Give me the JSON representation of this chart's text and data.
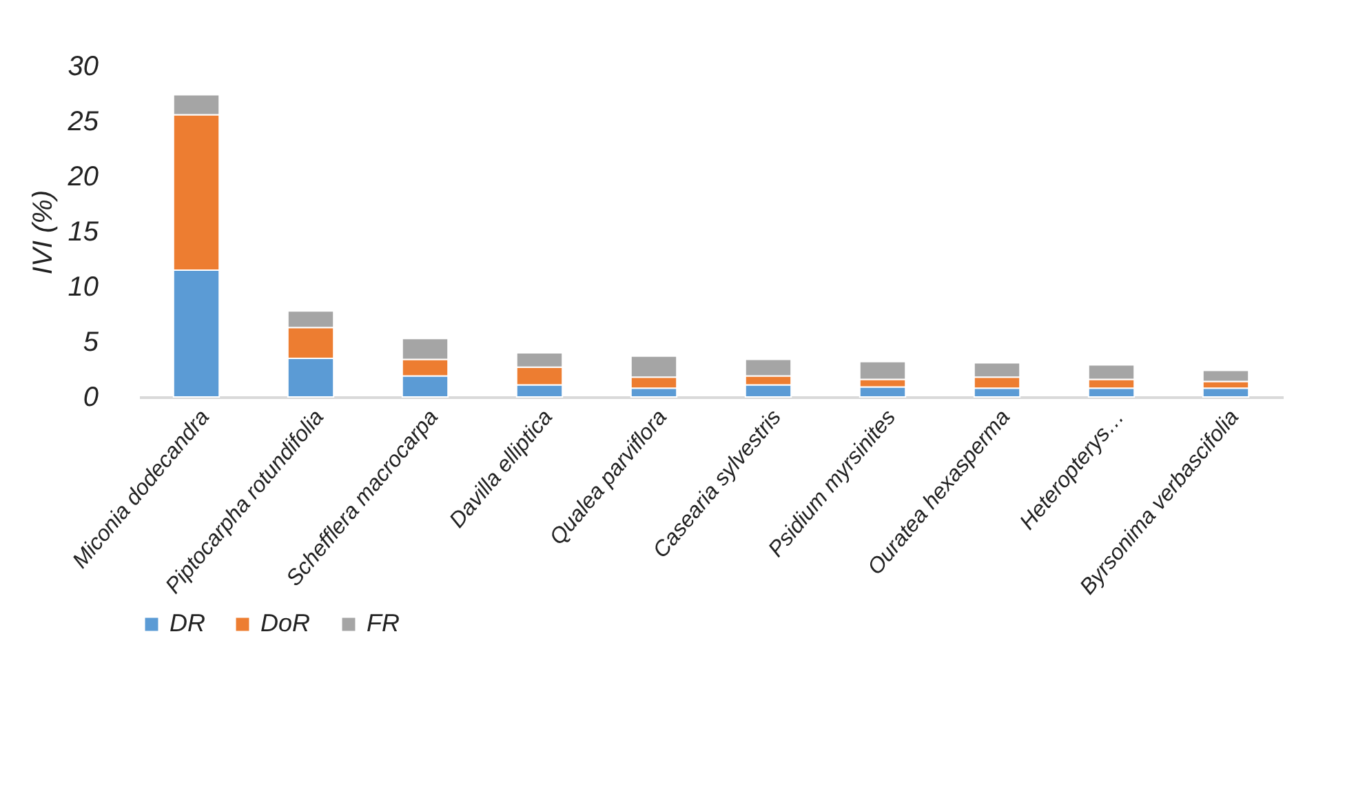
{
  "chart_data": {
    "type": "bar",
    "stacked": true,
    "ylabel": "IVI (%)",
    "categories": [
      "Miconia dodecandra",
      "Piptocarpha rotundifolia",
      "Schefflera macrocarpa",
      "Davilla elliptica",
      "Qualea parviflora",
      "Casearia sylvestris",
      "Psidium myrsinites",
      "Ouratea hexasperma",
      "Heteropterys…",
      "Byrsonima verbascifolia"
    ],
    "series": [
      {
        "name": "DR",
        "color": "#5b9bd5",
        "values": [
          11.5,
          3.5,
          1.9,
          1.1,
          0.8,
          1.1,
          0.9,
          0.8,
          0.8,
          0.8
        ]
      },
      {
        "name": "DoR",
        "color": "#ed7d31",
        "values": [
          14.1,
          2.8,
          1.5,
          1.6,
          1.0,
          0.8,
          0.7,
          1.0,
          0.8,
          0.6
        ]
      },
      {
        "name": "FR",
        "color": "#a5a5a5",
        "values": [
          1.8,
          1.5,
          1.9,
          1.3,
          1.9,
          1.5,
          1.6,
          1.3,
          1.3,
          1.0
        ]
      }
    ],
    "ylim": [
      0,
      30
    ],
    "yticks": [
      0,
      5,
      10,
      15,
      20,
      25,
      30
    ],
    "grid": false,
    "legend": "bottom"
  }
}
